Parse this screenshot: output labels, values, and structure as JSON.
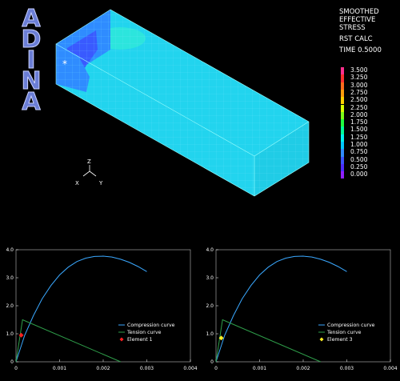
{
  "logo": {
    "letters": [
      "A",
      "D",
      "I",
      "N",
      "A"
    ]
  },
  "title_block": {
    "line1": "SMOOTHED",
    "line2": "EFFECTIVE",
    "line3": "STRESS",
    "line4": "RST CALC",
    "line5": "TIME 0.5000"
  },
  "color_legend": {
    "labels": [
      "3.500",
      "3.250",
      "3.000",
      "2.750",
      "2.500",
      "2.250",
      "2.000",
      "1.750",
      "1.500",
      "1.250",
      "1.000",
      "0.750",
      "0.500",
      "0.250",
      "0.000"
    ],
    "colors": [
      "#ff2f8e",
      "#ff2f2f",
      "#ff6a1c",
      "#ff9b0c",
      "#ffd000",
      "#d8ff00",
      "#7dff18",
      "#20ff40",
      "#00ff9a",
      "#00f4f0",
      "#00c8ff",
      "#2f8cff",
      "#3b54ff",
      "#4c2cff",
      "#8f20ff"
    ]
  },
  "axes_triad": {
    "z": "Z",
    "x": "X",
    "y": "Y"
  },
  "model_marker": "*",
  "charts": [
    {
      "legend": {
        "compression": "Compression curve",
        "tension": "Tension curve",
        "element": "Element 1"
      },
      "marker_color": "#ff2020",
      "yticks": [
        "0",
        "1.0",
        "2.0",
        "3.0",
        "4.0"
      ],
      "xticks": [
        "0",
        "0.001",
        "0.002",
        "0.003",
        "0.004"
      ]
    },
    {
      "legend": {
        "compression": "Compression curve",
        "tension": "Tension curve",
        "element": "Element 3"
      },
      "marker_color": "#ffee22",
      "yticks": [
        "0",
        "1.0",
        "2.0",
        "3.0",
        "4.0"
      ],
      "xticks": [
        "0",
        "0.001",
        "0.002",
        "0.003",
        "0.004"
      ]
    }
  ],
  "chart_data": [
    {
      "type": "line",
      "xlim": [
        0,
        0.004
      ],
      "ylim": [
        0,
        4.0
      ],
      "series": [
        {
          "name": "Compression curve",
          "color": "#3aa8ff",
          "x": [
            0,
            0.0002,
            0.0004,
            0.0006,
            0.0008,
            0.001,
            0.0012,
            0.0014,
            0.0016,
            0.0018,
            0.002,
            0.0022,
            0.0024,
            0.0026,
            0.0028,
            0.003
          ],
          "y": [
            0,
            0.95,
            1.65,
            2.25,
            2.72,
            3.1,
            3.38,
            3.58,
            3.7,
            3.76,
            3.77,
            3.74,
            3.66,
            3.55,
            3.4,
            3.22
          ]
        },
        {
          "name": "Tension curve",
          "color": "#2e9e4a",
          "x": [
            0,
            0.00015,
            0.0024
          ],
          "y": [
            0,
            1.5,
            0
          ]
        },
        {
          "name": "Element 1",
          "color": "#ff2020",
          "marker": true,
          "x": [
            0.00012
          ],
          "y": [
            0.95
          ]
        }
      ]
    },
    {
      "type": "line",
      "xlim": [
        0,
        0.004
      ],
      "ylim": [
        0,
        4.0
      ],
      "series": [
        {
          "name": "Compression curve",
          "color": "#3aa8ff",
          "x": [
            0,
            0.0002,
            0.0004,
            0.0006,
            0.0008,
            0.001,
            0.0012,
            0.0014,
            0.0016,
            0.0018,
            0.002,
            0.0022,
            0.0024,
            0.0026,
            0.0028,
            0.003
          ],
          "y": [
            0,
            0.95,
            1.65,
            2.25,
            2.72,
            3.1,
            3.38,
            3.58,
            3.7,
            3.76,
            3.77,
            3.74,
            3.66,
            3.55,
            3.4,
            3.22
          ]
        },
        {
          "name": "Tension curve",
          "color": "#2e9e4a",
          "x": [
            0,
            0.00015,
            0.0024
          ],
          "y": [
            0,
            1.5,
            0
          ]
        },
        {
          "name": "Element 3",
          "color": "#ffee22",
          "marker": true,
          "x": [
            0.00012
          ],
          "y": [
            0.85
          ]
        }
      ]
    }
  ]
}
